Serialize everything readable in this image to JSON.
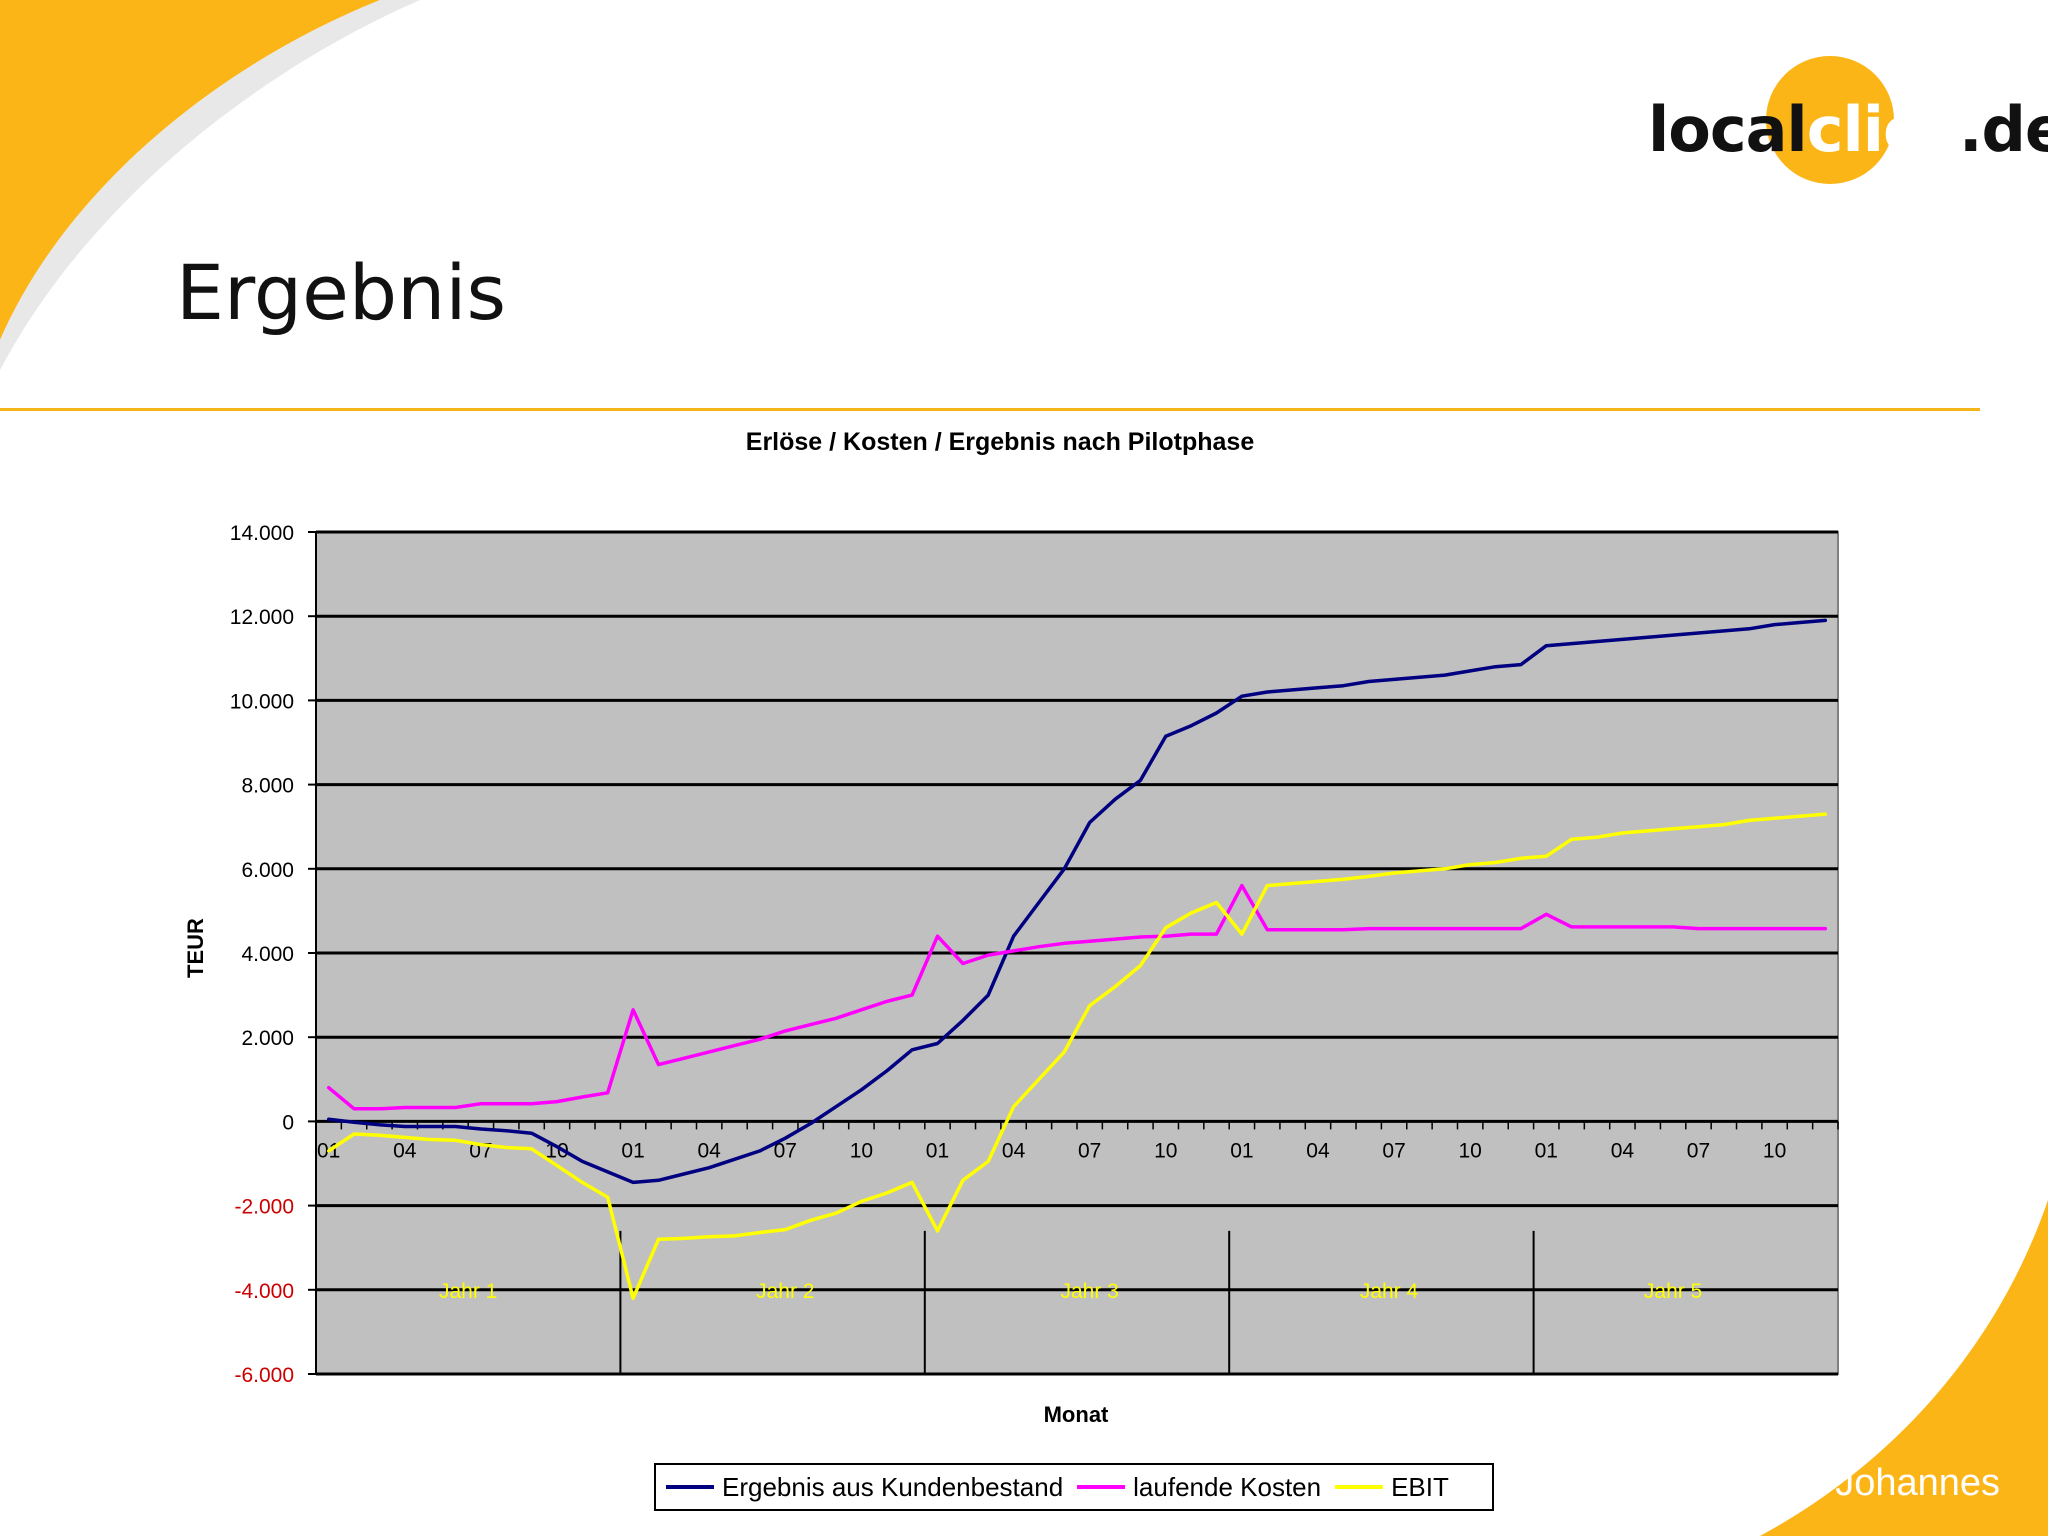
{
  "slide": {
    "title": "Ergebnis",
    "logo": {
      "part1": "local",
      "part2": "click",
      "part3": ".de"
    },
    "author": "Johannes"
  },
  "colors": {
    "accent": "#fbb516",
    "plot_bg": "#c0c0c0",
    "series_ergebnis": "#000080",
    "series_kosten": "#ff00ff",
    "series_ebit": "#ffff00",
    "negative_tick": "#cc0000",
    "year_label": "#ffff00"
  },
  "chart_data": {
    "type": "line",
    "title": "Erlöse / Kosten / Ergebnis nach Pilotphase",
    "xlabel": "Monat",
    "ylabel": "TEUR",
    "ylim": [
      -6000,
      14000
    ],
    "yticks": [
      14000,
      12000,
      10000,
      8000,
      6000,
      4000,
      2000,
      0,
      -2000,
      -4000,
      -6000
    ],
    "ytick_labels": [
      "14.000",
      "12.000",
      "10.000",
      "8.000",
      "6.000",
      "4.000",
      "2.000",
      "0",
      "-2.000",
      "-4.000",
      "-6.000"
    ],
    "grid": true,
    "legend_position": "bottom",
    "x": [
      1,
      2,
      3,
      4,
      5,
      6,
      7,
      8,
      9,
      10,
      11,
      12,
      13,
      14,
      15,
      16,
      17,
      18,
      19,
      20,
      21,
      22,
      23,
      24,
      25,
      26,
      27,
      28,
      29,
      30,
      31,
      32,
      33,
      34,
      35,
      36,
      37,
      38,
      39,
      40,
      41,
      42,
      43,
      44,
      45,
      46,
      47,
      48,
      49,
      50,
      51,
      52,
      53,
      54,
      55,
      56,
      57,
      58,
      59,
      60
    ],
    "x_tick_labels": [
      {
        "x": 1,
        "label": "01"
      },
      {
        "x": 4,
        "label": "04"
      },
      {
        "x": 7,
        "label": "07"
      },
      {
        "x": 10,
        "label": "10"
      },
      {
        "x": 13,
        "label": "01"
      },
      {
        "x": 16,
        "label": "04"
      },
      {
        "x": 19,
        "label": "07"
      },
      {
        "x": 22,
        "label": "10"
      },
      {
        "x": 25,
        "label": "01"
      },
      {
        "x": 28,
        "label": "04"
      },
      {
        "x": 31,
        "label": "07"
      },
      {
        "x": 34,
        "label": "10"
      },
      {
        "x": 37,
        "label": "01"
      },
      {
        "x": 40,
        "label": "04"
      },
      {
        "x": 43,
        "label": "07"
      },
      {
        "x": 46,
        "label": "10"
      },
      {
        "x": 49,
        "label": "01"
      },
      {
        "x": 52,
        "label": "04"
      },
      {
        "x": 55,
        "label": "07"
      },
      {
        "x": 58,
        "label": "10"
      }
    ],
    "year_boundaries": [
      12.5,
      24.5,
      36.5,
      48.5
    ],
    "year_labels": [
      {
        "label": "Jahr 1",
        "x": 6.5
      },
      {
        "label": "Jahr 2",
        "x": 19
      },
      {
        "label": "Jahr 3",
        "x": 31
      },
      {
        "label": "Jahr 4",
        "x": 42.8
      },
      {
        "label": "Jahr 5",
        "x": 54
      }
    ],
    "year_label_y": -4000,
    "series": [
      {
        "name": "Ergebnis aus Kundenbestand",
        "color": "#000080",
        "values": [
          50,
          -20,
          -80,
          -120,
          -120,
          -120,
          -180,
          -220,
          -280,
          -600,
          -950,
          -1200,
          -1450,
          -1400,
          -1250,
          -1100,
          -900,
          -700,
          -400,
          -50,
          350,
          750,
          1200,
          1700,
          1850,
          2400,
          3000,
          4400,
          5200,
          6000,
          7100,
          7650,
          8100,
          9150,
          9400,
          9700,
          10100,
          10200,
          10250,
          10300,
          10350,
          10450,
          10500,
          10550,
          10600,
          10700,
          10800,
          10850,
          11300,
          11350,
          11400,
          11450,
          11500,
          11550,
          11600,
          11650,
          11700,
          11800,
          11850,
          11900
        ]
      },
      {
        "name": "laufende Kosten",
        "color": "#ff00ff",
        "values": [
          800,
          300,
          300,
          330,
          330,
          330,
          420,
          420,
          420,
          470,
          580,
          680,
          2650,
          1350,
          1500,
          1650,
          1800,
          1950,
          2150,
          2300,
          2450,
          2650,
          2850,
          3000,
          4400,
          3750,
          3950,
          4050,
          4150,
          4230,
          4280,
          4330,
          4380,
          4400,
          4450,
          4450,
          5600,
          4550,
          4550,
          4550,
          4550,
          4580,
          4580,
          4580,
          4580,
          4580,
          4580,
          4580,
          4920,
          4620,
          4620,
          4620,
          4620,
          4620,
          4580,
          4580,
          4580,
          4580,
          4580,
          4580
        ]
      },
      {
        "name": "EBIT",
        "color": "#ffff00",
        "values": [
          -700,
          -300,
          -330,
          -380,
          -430,
          -450,
          -550,
          -620,
          -650,
          -1050,
          -1450,
          -1800,
          -4200,
          -2800,
          -2780,
          -2740,
          -2720,
          -2640,
          -2570,
          -2350,
          -2180,
          -1900,
          -1700,
          -1450,
          -2600,
          -1400,
          -950,
          350,
          1000,
          1650,
          2750,
          3200,
          3700,
          4600,
          4950,
          5200,
          4450,
          5600,
          5650,
          5700,
          5750,
          5820,
          5900,
          5950,
          6000,
          6100,
          6150,
          6250,
          6300,
          6700,
          6750,
          6850,
          6900,
          6950,
          7000,
          7050,
          7150,
          7200,
          7250,
          7300
        ]
      }
    ]
  }
}
